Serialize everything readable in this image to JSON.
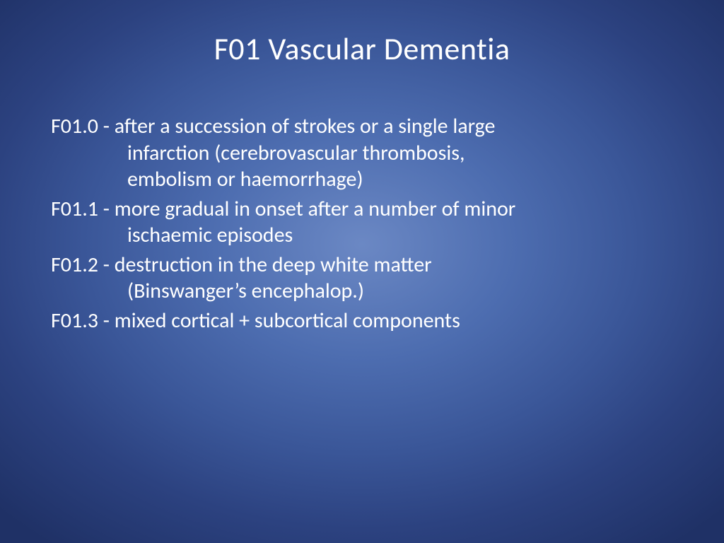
{
  "slide": {
    "title": "F01 Vascular Dementia",
    "title_fontsize": 44,
    "body_fontsize": 30,
    "title_color": "#ffffff",
    "text_color": "#ffffff",
    "background": {
      "type": "radial-gradient",
      "center_color": "#6b88c4",
      "edge_color": "#1f3166"
    },
    "font_family": "Calibri",
    "items": [
      {
        "code": "F01.0",
        "sep": " - ",
        "lines": [
          "after a succession of strokes or a single large",
          "infarction (cerebrovascular thrombosis,",
          "embolism or haemorrhage)"
        ]
      },
      {
        "code": "F01.1",
        "sep": " - ",
        "lines": [
          "more gradual in onset after a number of minor",
          "ischaemic episodes"
        ]
      },
      {
        "code": "F01.2",
        "sep": " - ",
        "lines": [
          "destruction in the deep white matter",
          "(Binswanger’s encephalop.)"
        ]
      },
      {
        "code": "F01.3",
        "sep": " - ",
        "lines": [
          "mixed cortical + subcortical components"
        ]
      }
    ]
  }
}
